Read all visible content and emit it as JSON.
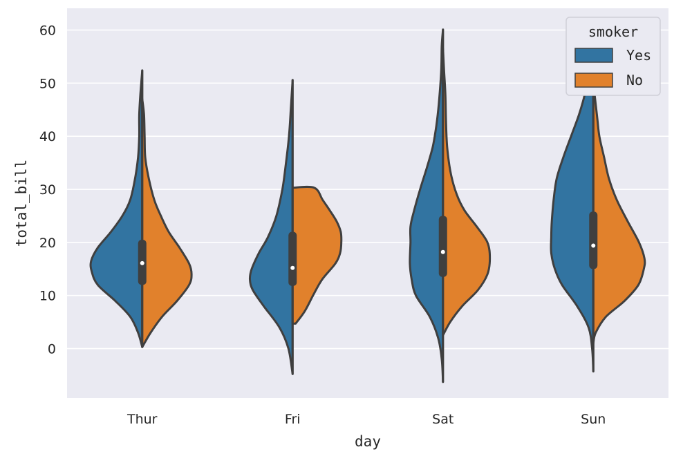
{
  "chart_data": {
    "type": "violin",
    "split": true,
    "categories": [
      "Thur",
      "Fri",
      "Sat",
      "Sun"
    ],
    "xlabel": "day",
    "ylabel": "total_bill",
    "ylim": [
      -9.3,
      64.1
    ],
    "yticks": [
      0,
      10,
      20,
      30,
      40,
      50,
      60
    ],
    "grid": true,
    "legend": {
      "title": "smoker",
      "placement": "top-right"
    },
    "series": [
      {
        "name": "Yes",
        "color": "#3274a1",
        "violins": [
          {
            "category": "Thur",
            "ymin": 0.3,
            "ymax": 52.4,
            "q1": 12.0,
            "median": 16.1,
            "q3": 20.5,
            "density": [
              [
                0.3,
                0.0
              ],
              [
                3,
                0.07
              ],
              [
                6,
                0.2
              ],
              [
                9,
                0.45
              ],
              [
                12,
                0.74
              ],
              [
                14.5,
                0.84
              ],
              [
                16.5,
                0.85
              ],
              [
                19,
                0.74
              ],
              [
                22,
                0.52
              ],
              [
                25,
                0.33
              ],
              [
                28,
                0.2
              ],
              [
                32,
                0.12
              ],
              [
                36,
                0.07
              ],
              [
                40,
                0.05
              ],
              [
                44,
                0.05
              ],
              [
                48,
                0.03
              ],
              [
                52.4,
                0.0
              ]
            ]
          },
          {
            "category": "Fri",
            "ymin": -4.8,
            "ymax": 50.6,
            "q1": 11.8,
            "median": 15.2,
            "q3": 22.0,
            "density": [
              [
                -4.8,
                0.0
              ],
              [
                0,
                0.07
              ],
              [
                4,
                0.22
              ],
              [
                8,
                0.48
              ],
              [
                11,
                0.66
              ],
              [
                13,
                0.71
              ],
              [
                15,
                0.68
              ],
              [
                18,
                0.56
              ],
              [
                21,
                0.41
              ],
              [
                25,
                0.27
              ],
              [
                30,
                0.17
              ],
              [
                35,
                0.11
              ],
              [
                40,
                0.06
              ],
              [
                45,
                0.03
              ],
              [
                50.6,
                0.0
              ]
            ]
          },
          {
            "category": "Sat",
            "ymin": -6.3,
            "ymax": 60.1,
            "q1": 13.5,
            "median": 18.2,
            "q3": 25.0,
            "density": [
              [
                -6.3,
                0.0
              ],
              [
                -2,
                0.02
              ],
              [
                2,
                0.08
              ],
              [
                6,
                0.22
              ],
              [
                10,
                0.45
              ],
              [
                13,
                0.52
              ],
              [
                16,
                0.55
              ],
              [
                20,
                0.54
              ],
              [
                23,
                0.54
              ],
              [
                26,
                0.48
              ],
              [
                30,
                0.38
              ],
              [
                34,
                0.27
              ],
              [
                38,
                0.17
              ],
              [
                42,
                0.11
              ],
              [
                46,
                0.07
              ],
              [
                52,
                0.03
              ],
              [
                57,
                0.02
              ],
              [
                60.1,
                0.0
              ]
            ]
          },
          {
            "category": "Sun",
            "ymin": -4.3,
            "ymax": 57.0,
            "q1": 15.0,
            "median": 19.4,
            "q3": 25.8,
            "density": [
              [
                -4.3,
                0.0
              ],
              [
                0,
                0.02
              ],
              [
                4,
                0.08
              ],
              [
                8,
                0.27
              ],
              [
                12,
                0.52
              ],
              [
                15,
                0.64
              ],
              [
                18,
                0.7
              ],
              [
                21,
                0.7
              ],
              [
                24,
                0.69
              ],
              [
                28,
                0.66
              ],
              [
                32,
                0.61
              ],
              [
                36,
                0.5
              ],
              [
                40,
                0.37
              ],
              [
                44,
                0.24
              ],
              [
                48,
                0.14
              ],
              [
                52,
                0.08
              ],
              [
                57,
                0.0
              ]
            ]
          }
        ]
      },
      {
        "name": "No",
        "color": "#e1812c",
        "violins": [
          {
            "category": "Thur",
            "ymin": 0.3,
            "ymax": 47.0,
            "density": [
              [
                0.3,
                0.0
              ],
              [
                3,
                0.14
              ],
              [
                6,
                0.33
              ],
              [
                9,
                0.58
              ],
              [
                12,
                0.78
              ],
              [
                14,
                0.82
              ],
              [
                16,
                0.78
              ],
              [
                19,
                0.62
              ],
              [
                22,
                0.44
              ],
              [
                25,
                0.31
              ],
              [
                28,
                0.2
              ],
              [
                32,
                0.11
              ],
              [
                36,
                0.05
              ],
              [
                40,
                0.04
              ],
              [
                44,
                0.03
              ],
              [
                47,
                0.0
              ]
            ]
          },
          {
            "category": "Fri",
            "ymin": 4.7,
            "ymax": 30.3,
            "density": [
              [
                4.7,
                0.05
              ],
              [
                7,
                0.2
              ],
              [
                10,
                0.34
              ],
              [
                13,
                0.49
              ],
              [
                16,
                0.71
              ],
              [
                18,
                0.79
              ],
              [
                20,
                0.81
              ],
              [
                22,
                0.8
              ],
              [
                24,
                0.73
              ],
              [
                26,
                0.62
              ],
              [
                28,
                0.5
              ],
              [
                30.3,
                0.36
              ],
              [
                30.3,
                0.0
              ]
            ]
          },
          {
            "category": "Sat",
            "ymin": 2.5,
            "ymax": 56.5,
            "density": [
              [
                2.5,
                0.0
              ],
              [
                5,
                0.12
              ],
              [
                8,
                0.32
              ],
              [
                11,
                0.58
              ],
              [
                14,
                0.74
              ],
              [
                17,
                0.78
              ],
              [
                20,
                0.74
              ],
              [
                23,
                0.56
              ],
              [
                26,
                0.36
              ],
              [
                29,
                0.23
              ],
              [
                33,
                0.13
              ],
              [
                38,
                0.07
              ],
              [
                43,
                0.05
              ],
              [
                48,
                0.04
              ],
              [
                52,
                0.02
              ],
              [
                56.5,
                0.0
              ]
            ]
          },
          {
            "category": "Sun",
            "ymin": 1.0,
            "ymax": 50.0,
            "density": [
              [
                1.0,
                0.0
              ],
              [
                3,
                0.04
              ],
              [
                6,
                0.21
              ],
              [
                9,
                0.52
              ],
              [
                12,
                0.75
              ],
              [
                15,
                0.84
              ],
              [
                17,
                0.85
              ],
              [
                20,
                0.76
              ],
              [
                24,
                0.57
              ],
              [
                28,
                0.39
              ],
              [
                32,
                0.26
              ],
              [
                36,
                0.18
              ],
              [
                40,
                0.1
              ],
              [
                43,
                0.07
              ],
              [
                46,
                0.04
              ],
              [
                50,
                0.0
              ]
            ]
          }
        ]
      }
    ]
  }
}
